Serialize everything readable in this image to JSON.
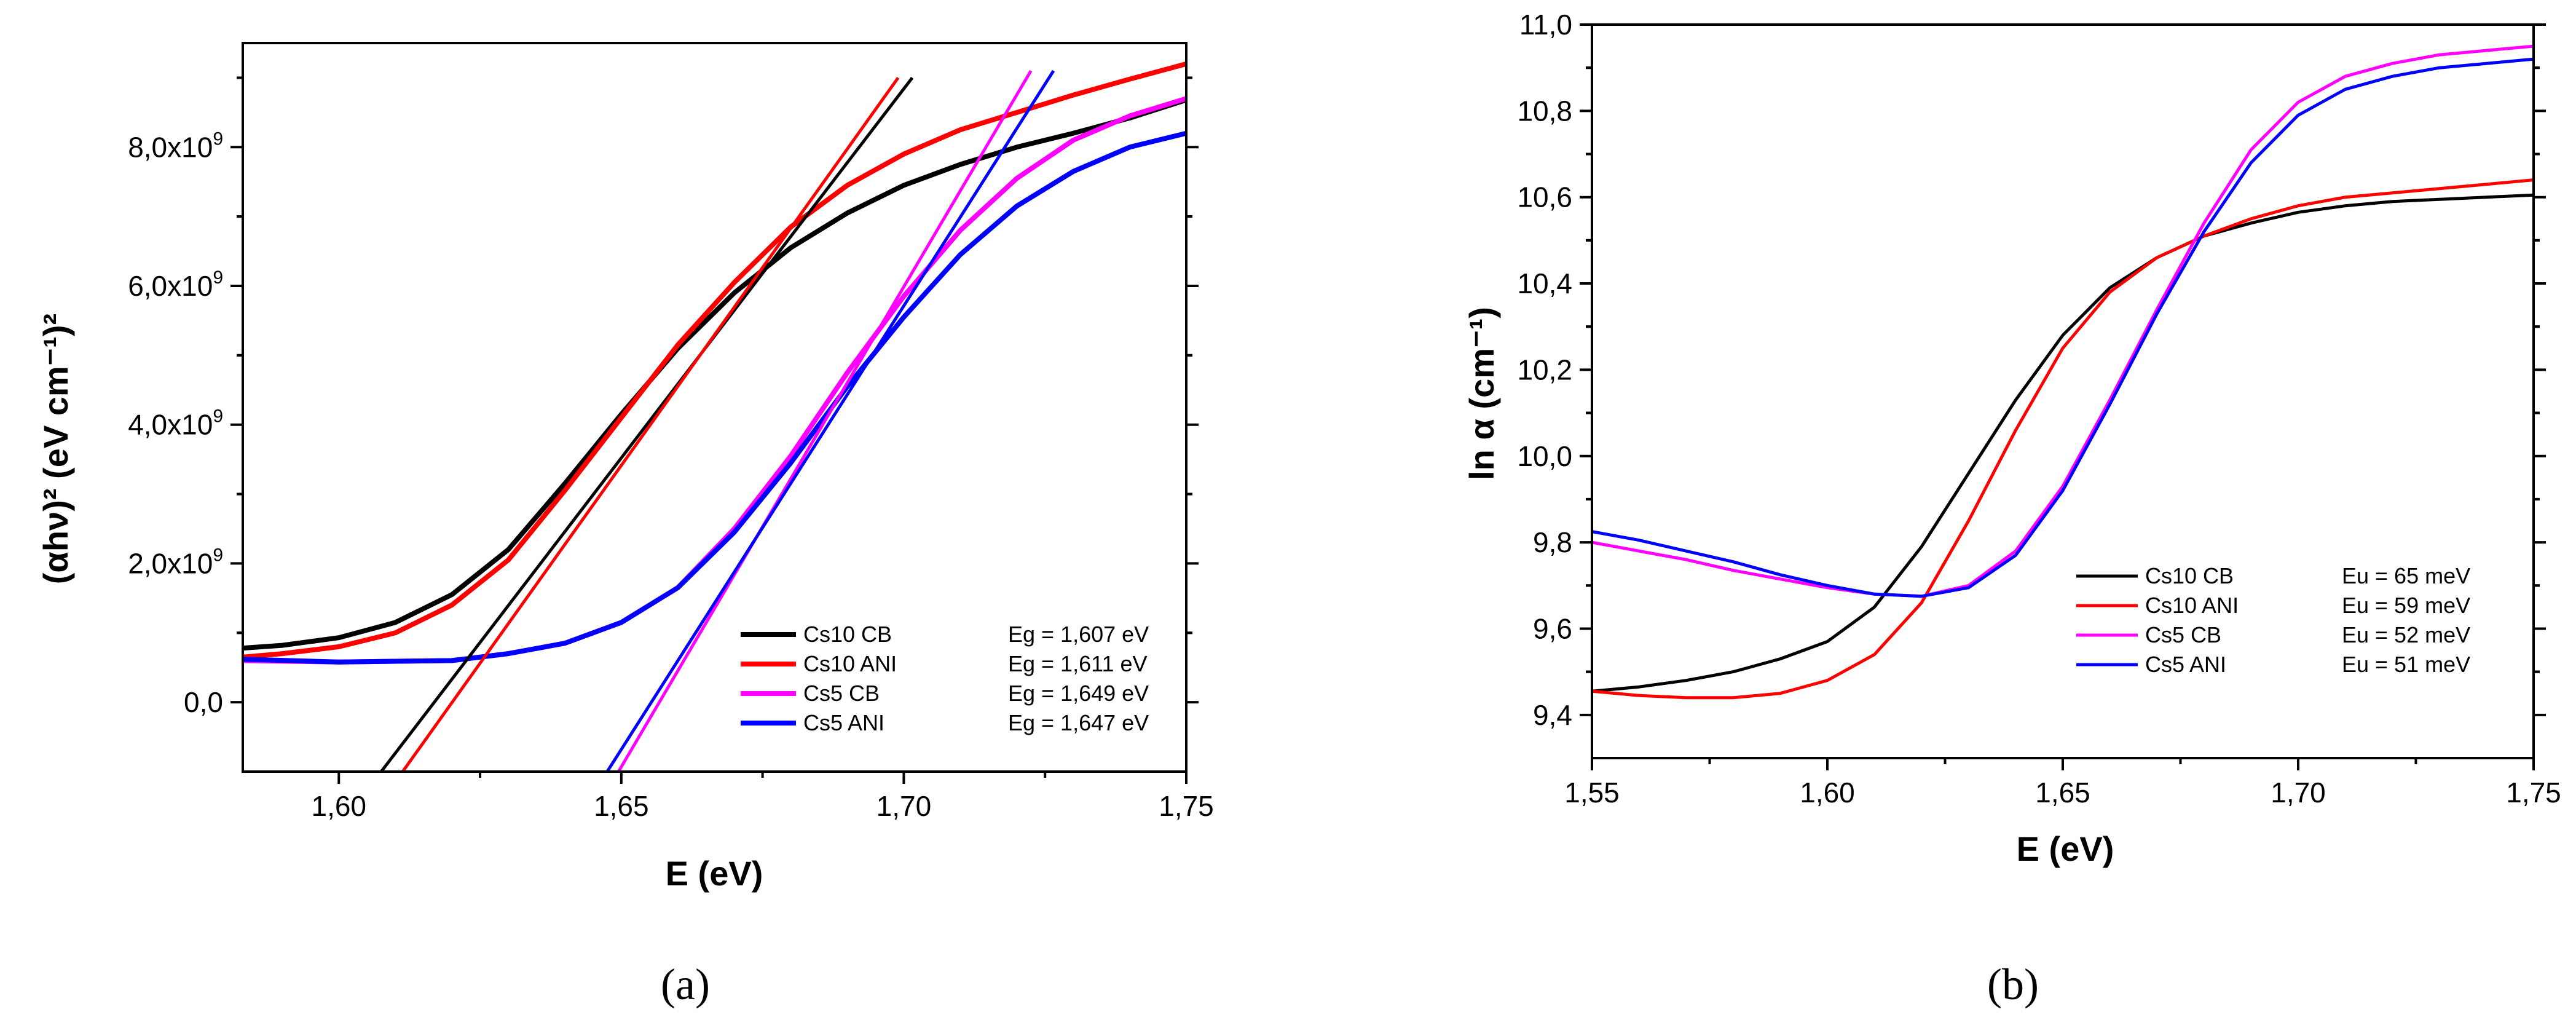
{
  "chart_data": [
    {
      "id": "a",
      "type": "line",
      "panel_label": "(a)",
      "xlabel": "E (eV)",
      "ylabel": "(αhν)² (eV cm⁻¹)²",
      "xlim": [
        1.583,
        1.75
      ],
      "ylim": [
        -1000000000.0,
        9500000000.0
      ],
      "xticks": [
        1.6,
        1.65,
        1.7,
        1.75
      ],
      "xtick_labels": [
        "1,60",
        "1,65",
        "1,70",
        "1,75"
      ],
      "yticks": [
        0,
        2000000000.0,
        4000000000.0,
        6000000000.0,
        8000000000.0
      ],
      "ytick_labels": [
        {
          "mantissa": "0,0",
          "exp": ""
        },
        {
          "mantissa": "2,0x10",
          "exp": "9"
        },
        {
          "mantissa": "4,0x10",
          "exp": "9"
        },
        {
          "mantissa": "6,0x10",
          "exp": "9"
        },
        {
          "mantissa": "8,0x10",
          "exp": "9"
        }
      ],
      "legend_position": "bottom-right",
      "series": [
        {
          "name": "Cs10 CB",
          "value_label": "Eg = 1,607 eV",
          "color": "#000000",
          "x": [
            1.583,
            1.59,
            1.6,
            1.61,
            1.62,
            1.63,
            1.64,
            1.65,
            1.66,
            1.67,
            1.68,
            1.69,
            1.7,
            1.71,
            1.72,
            1.73,
            1.74,
            1.75
          ],
          "y": [
            780000000.0,
            820000000.0,
            930000000.0,
            1150000000.0,
            1550000000.0,
            2200000000.0,
            3150000000.0,
            4150000000.0,
            5100000000.0,
            5900000000.0,
            6550000000.0,
            7050000000.0,
            7450000000.0,
            7750000000.0,
            8000000000.0,
            8200000000.0,
            8420000000.0,
            8680000000.0
          ]
        },
        {
          "name": "Cs10 ANI",
          "value_label": "Eg = 1,611 eV",
          "color": "#ff0000",
          "x": [
            1.583,
            1.59,
            1.6,
            1.61,
            1.62,
            1.63,
            1.64,
            1.65,
            1.66,
            1.67,
            1.68,
            1.69,
            1.7,
            1.71,
            1.72,
            1.73,
            1.74,
            1.75
          ],
          "y": [
            650000000.0,
            700000000.0,
            800000000.0,
            1000000000.0,
            1400000000.0,
            2050000000.0,
            3050000000.0,
            4100000000.0,
            5150000000.0,
            6050000000.0,
            6850000000.0,
            7450000000.0,
            7900000000.0,
            8250000000.0,
            8500000000.0,
            8750000000.0,
            8980000000.0,
            9200000000.0
          ]
        },
        {
          "name": "Cs5 CB",
          "value_label": "Eg = 1,649 eV",
          "color": "#ff00ff",
          "x": [
            1.583,
            1.6,
            1.62,
            1.63,
            1.64,
            1.65,
            1.66,
            1.67,
            1.68,
            1.69,
            1.7,
            1.71,
            1.72,
            1.73,
            1.74,
            1.75
          ],
          "y": [
            600000000.0,
            580000000.0,
            600000000.0,
            700000000.0,
            850000000.0,
            1150000000.0,
            1650000000.0,
            2500000000.0,
            3550000000.0,
            4750000000.0,
            5850000000.0,
            6800000000.0,
            7550000000.0,
            8100000000.0,
            8450000000.0,
            8700000000.0
          ]
        },
        {
          "name": "Cs5 ANI",
          "value_label": "Eg = 1,647 eV",
          "color": "#0000ff",
          "x": [
            1.583,
            1.6,
            1.62,
            1.63,
            1.64,
            1.65,
            1.66,
            1.67,
            1.68,
            1.69,
            1.7,
            1.71,
            1.72,
            1.73,
            1.74,
            1.75
          ],
          "y": [
            620000000.0,
            580000000.0,
            600000000.0,
            700000000.0,
            850000000.0,
            1150000000.0,
            1650000000.0,
            2450000000.0,
            3450000000.0,
            4550000000.0,
            5550000000.0,
            6450000000.0,
            7150000000.0,
            7650000000.0,
            8000000000.0,
            8200000000.0
          ]
        }
      ],
      "fit_lines": [
        {
          "series": "Cs10 CB",
          "color": "#000000",
          "x": [
            1.6075,
            1.7015
          ],
          "y": [
            -1000000000.0,
            9000000000.0
          ]
        },
        {
          "series": "Cs10 ANI",
          "color": "#ff0000",
          "x": [
            1.6113,
            1.699
          ],
          "y": [
            -1000000000.0,
            9000000000.0
          ]
        },
        {
          "series": "Cs5 CB",
          "color": "#ff00ff",
          "x": [
            1.6495,
            1.7225
          ],
          "y": [
            -1000000000.0,
            9100000000.0
          ]
        },
        {
          "series": "Cs5 ANI",
          "color": "#0000ff",
          "x": [
            1.6475,
            1.7265
          ],
          "y": [
            -1000000000.0,
            9100000000.0
          ]
        }
      ]
    },
    {
      "id": "b",
      "type": "line",
      "panel_label": "(b)",
      "xlabel": "E (eV)",
      "ylabel": "ln α (cm⁻¹)",
      "xlim": [
        1.55,
        1.75
      ],
      "ylim": [
        9.3,
        11.0
      ],
      "xticks": [
        1.55,
        1.6,
        1.65,
        1.7,
        1.75
      ],
      "xtick_labels": [
        "1,55",
        "1,60",
        "1,65",
        "1,70",
        "1,75"
      ],
      "yticks": [
        9.4,
        9.6,
        9.8,
        10.0,
        10.2,
        10.4,
        10.6,
        10.8,
        11.0
      ],
      "ytick_labels": [
        "9,4",
        "9,6",
        "9,8",
        "10,0",
        "10,2",
        "10,4",
        "10,6",
        "10,8",
        "11,0"
      ],
      "legend_position": "bottom-right",
      "series": [
        {
          "name": "Cs10 CB",
          "value_label": "Eu = 65 meV",
          "color": "#000000",
          "x": [
            1.55,
            1.56,
            1.57,
            1.58,
            1.59,
            1.6,
            1.61,
            1.62,
            1.63,
            1.64,
            1.65,
            1.66,
            1.67,
            1.68,
            1.69,
            1.7,
            1.71,
            1.72,
            1.73,
            1.74,
            1.75
          ],
          "y": [
            9.455,
            9.465,
            9.48,
            9.5,
            9.53,
            9.57,
            9.65,
            9.79,
            9.96,
            10.13,
            10.28,
            10.39,
            10.46,
            10.51,
            10.54,
            10.565,
            10.58,
            10.59,
            10.595,
            10.6,
            10.605
          ]
        },
        {
          "name": "Cs10 ANI",
          "value_label": "Eu = 59 meV",
          "color": "#ff0000",
          "x": [
            1.55,
            1.56,
            1.57,
            1.58,
            1.59,
            1.6,
            1.61,
            1.62,
            1.63,
            1.64,
            1.65,
            1.66,
            1.67,
            1.68,
            1.69,
            1.7,
            1.71,
            1.72,
            1.73,
            1.74,
            1.75
          ],
          "y": [
            9.455,
            9.445,
            9.44,
            9.44,
            9.45,
            9.48,
            9.54,
            9.66,
            9.85,
            10.06,
            10.25,
            10.38,
            10.46,
            10.51,
            10.55,
            10.58,
            10.6,
            10.61,
            10.62,
            10.63,
            10.64
          ]
        },
        {
          "name": "Cs5 CB",
          "value_label": "Eu = 52 meV",
          "color": "#ff00ff",
          "x": [
            1.55,
            1.56,
            1.57,
            1.58,
            1.59,
            1.6,
            1.61,
            1.62,
            1.63,
            1.64,
            1.65,
            1.66,
            1.67,
            1.68,
            1.69,
            1.7,
            1.71,
            1.72,
            1.73,
            1.74,
            1.75
          ],
          "y": [
            9.8,
            9.78,
            9.76,
            9.735,
            9.715,
            9.695,
            9.68,
            9.675,
            9.7,
            9.78,
            9.93,
            10.13,
            10.34,
            10.54,
            10.71,
            10.82,
            10.88,
            10.91,
            10.93,
            10.94,
            10.95
          ]
        },
        {
          "name": "Cs5 ANI",
          "value_label": "Eu = 51 meV",
          "color": "#0000ff",
          "x": [
            1.55,
            1.56,
            1.57,
            1.58,
            1.59,
            1.6,
            1.61,
            1.62,
            1.63,
            1.64,
            1.65,
            1.66,
            1.67,
            1.68,
            1.69,
            1.7,
            1.71,
            1.72,
            1.73,
            1.74,
            1.75
          ],
          "y": [
            9.825,
            9.805,
            9.78,
            9.755,
            9.725,
            9.7,
            9.68,
            9.675,
            9.695,
            9.77,
            9.92,
            10.12,
            10.33,
            10.52,
            10.68,
            10.79,
            10.85,
            10.88,
            10.9,
            10.91,
            10.92
          ]
        }
      ]
    }
  ]
}
